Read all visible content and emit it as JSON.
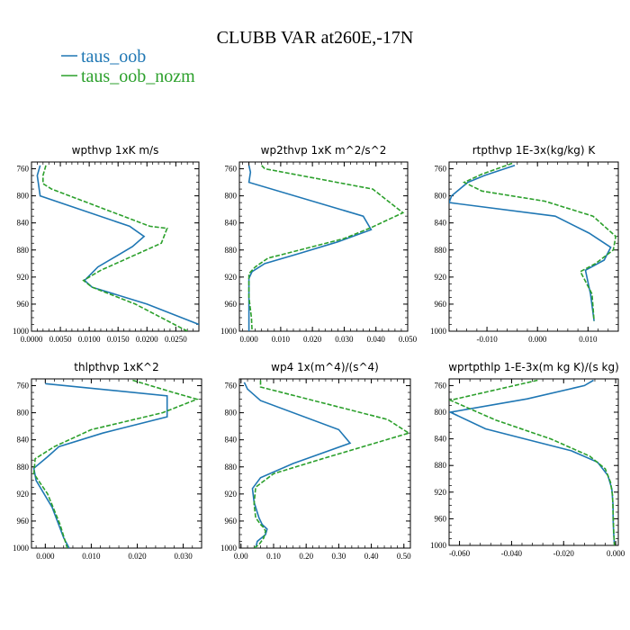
{
  "title": "CLUBB VAR at260E,-17N",
  "legend": [
    {
      "label": "taus_oob",
      "color": "#1f77b4"
    },
    {
      "label": "taus_oob_nozm",
      "color": "#2ca02c"
    }
  ],
  "chart_data": [
    {
      "type": "line",
      "title": "wpthvp   1xK m/s",
      "xlim": [
        0,
        0.029
      ],
      "ylim": [
        1000,
        750
      ],
      "xticks": [
        0,
        0.005,
        0.01,
        0.015,
        0.02,
        0.025
      ],
      "xtick_labels": [
        "0.0000",
        "0.0050",
        "0.0100",
        "0.0150",
        "0.0200",
        "0.0250"
      ],
      "yticks": [
        760,
        800,
        840,
        880,
        920,
        960,
        1000
      ],
      "series": [
        {
          "name": "taus_oob",
          "x": [
            0.0015,
            0.001,
            0.0012,
            0.0015,
            0.017,
            0.0195,
            0.0175,
            0.0115,
            0.0092,
            0.0105,
            0.02,
            0.029
          ],
          "y": [
            755,
            770,
            782,
            800,
            845,
            860,
            875,
            905,
            925,
            935,
            960,
            990
          ]
        },
        {
          "name": "taus_oob_nozm",
          "x": [
            0.0025,
            0.002,
            0.002,
            0.0035,
            0.0205,
            0.0235,
            0.0225,
            0.012,
            0.009,
            0.0105,
            0.018,
            0.027
          ],
          "y": [
            755,
            770,
            782,
            790,
            845,
            848,
            870,
            910,
            925,
            935,
            960,
            1000
          ]
        }
      ]
    },
    {
      "type": "line",
      "title": "wp2thvp   1xK m^2/s^2",
      "xlim": [
        -0.003,
        0.05
      ],
      "ylim": [
        1000,
        750
      ],
      "xticks": [
        0,
        0.01,
        0.02,
        0.03,
        0.04,
        0.05
      ],
      "xtick_labels": [
        "0.000",
        "0.010",
        "0.020",
        "0.030",
        "0.040",
        "0.050"
      ],
      "yticks": [
        760,
        800,
        840,
        880,
        920,
        960,
        1000
      ],
      "series": [
        {
          "name": "taus_oob",
          "x": [
            0.0,
            0.0005,
            0.0,
            0.036,
            0.0385,
            0.028,
            0.016,
            0.005,
            0.001,
            0.0,
            0.0,
            0.0,
            0.0
          ],
          "y": [
            755,
            765,
            780,
            830,
            850,
            868,
            885,
            900,
            912,
            922,
            940,
            970,
            1000
          ]
        },
        {
          "name": "taus_oob_nozm",
          "x": [
            0.004,
            0.005,
            0.039,
            0.0485,
            0.0385,
            0.03,
            0.016,
            0.006,
            0.002,
            0.0,
            0.0,
            0.0008,
            0.001
          ],
          "y": [
            755,
            760,
            790,
            825,
            847,
            863,
            880,
            892,
            905,
            915,
            950,
            980,
            1000
          ]
        }
      ]
    },
    {
      "type": "line",
      "title": "rtpthvp   1E-3x(kg/kg) K",
      "xlim": [
        -0.0175,
        0.016
      ],
      "ylim": [
        1000,
        750
      ],
      "xticks": [
        -0.01,
        0.0,
        0.01
      ],
      "xtick_labels": [
        "-0.010",
        "0.000",
        "0.010"
      ],
      "yticks": [
        760,
        800,
        840,
        880,
        920,
        960,
        1000
      ],
      "series": [
        {
          "name": "taus_oob",
          "x": [
            -0.0045,
            -0.0105,
            -0.0138,
            -0.017,
            -0.0175,
            0.0035,
            0.0102,
            0.0145,
            0.0132,
            0.0095,
            0.0105,
            0.0112
          ],
          "y": [
            755,
            770,
            780,
            800,
            810,
            830,
            855,
            876,
            895,
            910,
            945,
            985
          ]
        },
        {
          "name": "taus_oob_nozm",
          "x": [
            -0.005,
            -0.011,
            -0.0145,
            -0.011,
            0.0015,
            0.011,
            0.0155,
            0.015,
            0.0115,
            0.0085,
            0.0108,
            0.0112
          ],
          "y": [
            752,
            768,
            780,
            793,
            808,
            830,
            860,
            880,
            900,
            912,
            945,
            985
          ]
        }
      ]
    },
    {
      "type": "line",
      "title": "thlpthvp   1xK^2",
      "xlim": [
        -0.003,
        0.034
      ],
      "ylim": [
        1000,
        750
      ],
      "xticks": [
        0,
        0.01,
        0.02,
        0.03
      ],
      "xtick_labels": [
        "0.000",
        "0.010",
        "0.020",
        "0.030"
      ],
      "yticks": [
        760,
        800,
        840,
        880,
        920,
        960,
        1000
      ],
      "series": [
        {
          "name": "taus_oob",
          "x": [
            0.0,
            0.0265,
            0.0265,
            0.0125,
            0.003,
            0.0005,
            -0.0025,
            -0.002,
            0.0015,
            0.004,
            0.0052
          ],
          "y": [
            757,
            775,
            806,
            830,
            850,
            865,
            882,
            900,
            940,
            985,
            1000
          ]
        },
        {
          "name": "taus_oob_nozm",
          "x": [
            0.019,
            0.0278,
            0.033,
            0.0255,
            0.01,
            0.002,
            -0.0022,
            -0.0025,
            0.0005,
            0.0032,
            0.0048
          ],
          "y": [
            752,
            770,
            780,
            800,
            825,
            850,
            868,
            890,
            920,
            965,
            1000
          ]
        }
      ]
    },
    {
      "type": "line",
      "title": "wp4   1x(m^4)/(s^4)",
      "xlim": [
        -0.005,
        0.52
      ],
      "ylim": [
        1000,
        750
      ],
      "xticks": [
        0,
        0.1,
        0.2,
        0.3,
        0.4,
        0.5
      ],
      "xtick_labels": [
        "0.00",
        "0.10",
        "0.20",
        "0.30",
        "0.40",
        "0.50"
      ],
      "yticks": [
        760,
        800,
        840,
        880,
        920,
        960,
        1000
      ],
      "series": [
        {
          "name": "taus_oob",
          "x": [
            0.01,
            0.02,
            0.06,
            0.3,
            0.335,
            0.16,
            0.06,
            0.035,
            0.04,
            0.055,
            0.065,
            0.08,
            0.075,
            0.05,
            0.045
          ],
          "y": [
            755,
            765,
            782,
            825,
            845,
            875,
            896,
            912,
            932,
            955,
            965,
            972,
            980,
            990,
            1000
          ]
        },
        {
          "name": "taus_oob_nozm",
          "x": [
            0.06,
            0.06,
            0.45,
            0.515,
            0.25,
            0.1,
            0.045,
            0.04,
            0.045,
            0.06,
            0.07,
            0.075,
            0.07,
            0.055,
            0.04
          ],
          "y": [
            752,
            762,
            810,
            830,
            868,
            890,
            910,
            935,
            955,
            965,
            970,
            975,
            985,
            995,
            1000
          ]
        }
      ]
    },
    {
      "type": "line",
      "title": "wprtpthlp   1-E-3x(m kg K)/(s kg)",
      "xlim": [
        -0.064,
        0.001
      ],
      "ylim": [
        1000,
        750
      ],
      "xticks": [
        -0.06,
        -0.04,
        -0.02,
        0.0
      ],
      "xtick_labels": [
        "-0.060",
        "-0.040",
        "-0.020",
        "0.000"
      ],
      "yticks": [
        760,
        800,
        840,
        880,
        920,
        960,
        1000
      ],
      "series": [
        {
          "name": "taus_oob",
          "x": [
            -0.0085,
            -0.012,
            -0.034,
            -0.0635,
            -0.05,
            -0.035,
            -0.017,
            -0.007,
            -0.003,
            -0.0015,
            -0.001,
            -0.001,
            -0.0008,
            -0.0005
          ],
          "y": [
            752,
            760,
            780,
            800,
            825,
            840,
            858,
            875,
            895,
            915,
            940,
            960,
            980,
            1000
          ]
        },
        {
          "name": "taus_oob_nozm",
          "x": [
            -0.03,
            -0.0635,
            -0.046,
            -0.025,
            -0.01,
            -0.004,
            -0.002,
            -0.0012,
            -0.001,
            -0.0008,
            -0.0005
          ],
          "y": [
            752,
            782,
            812,
            840,
            866,
            885,
            905,
            925,
            950,
            975,
            1000
          ]
        }
      ]
    }
  ]
}
